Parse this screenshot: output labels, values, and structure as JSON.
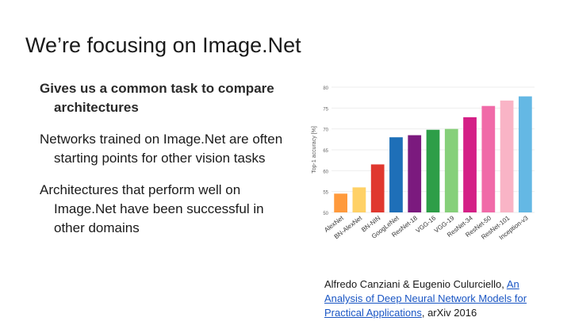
{
  "slide": {
    "title": "We’re focusing on Image.Net",
    "bullets": [
      "Gives us a common task to compare architectures",
      "Networks trained on Image.Net are often starting points for other vision tasks",
      "Architectures that perform well on Image.Net have been successful in other domains"
    ],
    "citation": {
      "authors": "Alfredo Canziani & Eugenio Culurciello, ",
      "link_text": "An Analysis of Deep Neural Network Models for Practical Applications",
      "suffix": ", arXiv 2016"
    }
  },
  "chart_data": {
    "type": "bar",
    "ylabel": "Top-1 accuracy [%]",
    "ylim": [
      50,
      80
    ],
    "yticks": [
      "50",
      "55",
      "60",
      "65",
      "70",
      "75",
      "80"
    ],
    "grid": true,
    "categories": [
      "AlexNet",
      "BN-AlexNet",
      "BN-NIN",
      "GoogLeNet",
      "ResNet-18",
      "VGG-16",
      "VGG-19",
      "ResNet-34",
      "ResNet-50",
      "ResNet-101",
      "Inception-v3"
    ],
    "values": [
      54.5,
      56.0,
      61.5,
      68.0,
      68.5,
      69.8,
      70.0,
      72.8,
      75.5,
      76.8,
      77.8
    ],
    "colors": [
      "#ff9a3c",
      "#ffd166",
      "#e0382f",
      "#1e6fb8",
      "#7b1a7e",
      "#2e9e48",
      "#86d07a",
      "#d41f86",
      "#f06aa8",
      "#f9b4c6",
      "#64b8e4"
    ]
  }
}
